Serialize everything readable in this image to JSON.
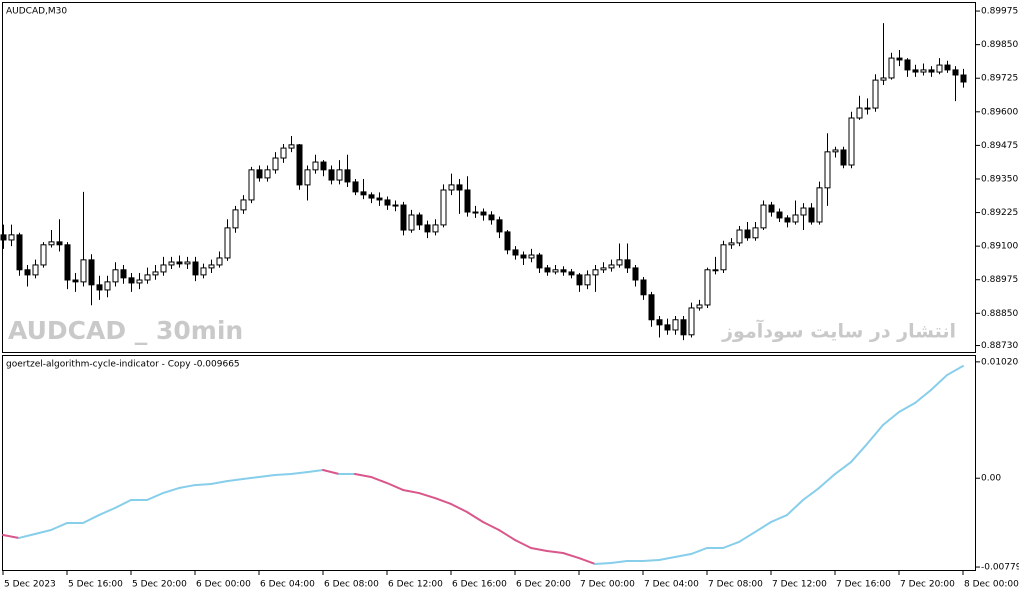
{
  "chart_data": [
    {
      "type": "candlestick",
      "title": "AUDCAD,M30",
      "watermark": "AUDCAD _ 30min",
      "watermark_right": "انتشار در سایت سودآموز",
      "up_color": "#ffffff",
      "down_color": "#000000",
      "ylim": [
        0.88706,
        0.90005
      ],
      "yticks": [
        0.89975,
        {
          "value": 0.8985,
          "label": "0.89850"
        },
        0.89725,
        {
          "value": 0.896,
          "label": "0.89600"
        },
        0.89475,
        {
          "value": 0.8935,
          "label": "0.89350"
        },
        0.89225,
        {
          "value": 0.891,
          "label": "0.89100"
        },
        0.88975,
        {
          "value": 0.8885,
          "label": "0.88850"
        },
        {
          "value": 0.8873,
          "label": "0.88730"
        }
      ],
      "categories": [
        "5 Dec 2023",
        null,
        null,
        null,
        null,
        null,
        null,
        null,
        "5 Dec 16:00",
        null,
        null,
        null,
        null,
        null,
        null,
        null,
        "5 Dec 20:00",
        null,
        null,
        null,
        null,
        null,
        null,
        null,
        "6 Dec 00:00",
        null,
        null,
        null,
        null,
        null,
        null,
        null,
        "6 Dec 04:00",
        null,
        null,
        null,
        null,
        null,
        null,
        null,
        "6 Dec 08:00",
        null,
        null,
        null,
        null,
        null,
        null,
        null,
        "6 Dec 12:00",
        null,
        null,
        null,
        null,
        null,
        null,
        null,
        "6 Dec 16:00",
        null,
        null,
        null,
        null,
        null,
        null,
        null,
        "6 Dec 20:00",
        null,
        null,
        null,
        null,
        null,
        null,
        null,
        "7 Dec 00:00",
        null,
        null,
        null,
        null,
        null,
        null,
        null,
        "7 Dec 04:00",
        null,
        null,
        null,
        null,
        null,
        null,
        null,
        "7 Dec 08:00",
        null,
        null,
        null,
        null,
        null,
        null,
        null,
        "7 Dec 12:00",
        null,
        null,
        null,
        null,
        null,
        null,
        null,
        "7 Dec 16:00",
        null,
        null,
        null,
        null,
        null,
        null,
        null,
        "7 Dec 20:00",
        null,
        null,
        null,
        null,
        null,
        null,
        null,
        "8 Dec 00:00"
      ],
      "ohlc": [
        [
          0.89142,
          0.8918,
          0.8909,
          0.89123
        ],
        [
          0.89123,
          0.8918,
          0.891,
          0.89142
        ],
        [
          0.89142,
          0.8915,
          0.8899,
          0.89012
        ],
        [
          0.89012,
          0.8903,
          0.8895,
          0.88993
        ],
        [
          0.88993,
          0.8905,
          0.8898,
          0.8903
        ],
        [
          0.8903,
          0.89115,
          0.8902,
          0.89105
        ],
        [
          0.89105,
          0.8916,
          0.89095,
          0.89116
        ],
        [
          0.89116,
          0.892,
          0.8908,
          0.89105
        ],
        [
          0.89105,
          0.89115,
          0.8894,
          0.88974
        ],
        [
          0.88974,
          0.89,
          0.8893,
          0.88967
        ],
        [
          0.88967,
          0.89302,
          0.8895,
          0.89049
        ],
        [
          0.89049,
          0.8907,
          0.8888,
          0.88956
        ],
        [
          0.88956,
          0.8899,
          0.889,
          0.88937
        ],
        [
          0.88937,
          0.8899,
          0.8891,
          0.88967
        ],
        [
          0.88967,
          0.8904,
          0.8895,
          0.89012
        ],
        [
          0.89012,
          0.8903,
          0.8896,
          0.88982
        ],
        [
          0.88982,
          0.89,
          0.8893,
          0.88963
        ],
        [
          0.88963,
          0.89,
          0.8894,
          0.88974
        ],
        [
          0.88974,
          0.8902,
          0.8896,
          0.88993
        ],
        [
          0.88993,
          0.8903,
          0.88975,
          0.89004
        ],
        [
          0.89004,
          0.8906,
          0.8899,
          0.8903
        ],
        [
          0.8903,
          0.8906,
          0.89015,
          0.89041
        ],
        [
          0.89041,
          0.89065,
          0.8902,
          0.89034
        ],
        [
          0.89034,
          0.8906,
          0.89015,
          0.89041
        ],
        [
          0.89041,
          0.8906,
          0.8897,
          0.88993
        ],
        [
          0.88993,
          0.89035,
          0.8898,
          0.89019
        ],
        [
          0.89019,
          0.8905,
          0.89,
          0.8903
        ],
        [
          0.8903,
          0.8908,
          0.8902,
          0.89056
        ],
        [
          0.89056,
          0.892,
          0.89045,
          0.89168
        ],
        [
          0.89168,
          0.8925,
          0.8915,
          0.89235
        ],
        [
          0.89235,
          0.8929,
          0.8922,
          0.89272
        ],
        [
          0.89272,
          0.89395,
          0.8926,
          0.89384
        ],
        [
          0.89384,
          0.894,
          0.8934,
          0.89354
        ],
        [
          0.89354,
          0.894,
          0.8934,
          0.89384
        ],
        [
          0.89384,
          0.8945,
          0.8937,
          0.89428
        ],
        [
          0.89428,
          0.8948,
          0.8941,
          0.89465
        ],
        [
          0.89465,
          0.8951,
          0.8945,
          0.89477
        ],
        [
          0.89477,
          0.8948,
          0.8931,
          0.89328
        ],
        [
          0.89328,
          0.894,
          0.8927,
          0.89384
        ],
        [
          0.89384,
          0.8944,
          0.8937,
          0.89413
        ],
        [
          0.89413,
          0.8942,
          0.8936,
          0.89384
        ],
        [
          0.89384,
          0.894,
          0.8933,
          0.89346
        ],
        [
          0.89346,
          0.8942,
          0.8933,
          0.89384
        ],
        [
          0.89384,
          0.8944,
          0.8932,
          0.89339
        ],
        [
          0.89339,
          0.8935,
          0.8929,
          0.89302
        ],
        [
          0.89302,
          0.8935,
          0.89275,
          0.89291
        ],
        [
          0.89291,
          0.893,
          0.8926,
          0.89279
        ],
        [
          0.89279,
          0.893,
          0.8925,
          0.89272
        ],
        [
          0.89272,
          0.89285,
          0.89235,
          0.89253
        ],
        [
          0.89253,
          0.8927,
          0.8923,
          0.89253
        ],
        [
          0.89253,
          0.89265,
          0.8914,
          0.8916
        ],
        [
          0.8916,
          0.89235,
          0.8915,
          0.89216
        ],
        [
          0.89216,
          0.89225,
          0.8916,
          0.89179
        ],
        [
          0.89179,
          0.89195,
          0.8913,
          0.89153
        ],
        [
          0.89153,
          0.892,
          0.8914,
          0.89179
        ],
        [
          0.89179,
          0.8933,
          0.8917,
          0.89309
        ],
        [
          0.89309,
          0.8937,
          0.8929,
          0.89328
        ],
        [
          0.89328,
          0.8935,
          0.8922,
          0.89309
        ],
        [
          0.89309,
          0.8936,
          0.8921,
          0.89227
        ],
        [
          0.89227,
          0.8925,
          0.89205,
          0.89227
        ],
        [
          0.89227,
          0.8924,
          0.89195,
          0.89216
        ],
        [
          0.89216,
          0.8923,
          0.8918,
          0.89198
        ],
        [
          0.89198,
          0.8921,
          0.8913,
          0.89153
        ],
        [
          0.89153,
          0.8916,
          0.8907,
          0.89086
        ],
        [
          0.89086,
          0.891,
          0.8905,
          0.89067
        ],
        [
          0.89067,
          0.8908,
          0.8903,
          0.89056
        ],
        [
          0.89056,
          0.8909,
          0.8904,
          0.89067
        ],
        [
          0.89067,
          0.89075,
          0.89,
          0.89019
        ],
        [
          0.89019,
          0.8903,
          0.8899,
          0.89004
        ],
        [
          0.89004,
          0.8903,
          0.88995,
          0.89012
        ],
        [
          0.89012,
          0.89025,
          0.8899,
          0.89004
        ],
        [
          0.89004,
          0.89015,
          0.8898,
          0.88993
        ],
        [
          0.88993,
          0.89,
          0.8893,
          0.88956
        ],
        [
          0.88956,
          0.8901,
          0.8894,
          0.88993
        ],
        [
          0.88993,
          0.8903,
          0.8893,
          0.89012
        ],
        [
          0.89012,
          0.8904,
          0.89,
          0.89019
        ],
        [
          0.89019,
          0.8905,
          0.89005,
          0.8903
        ],
        [
          0.8903,
          0.8911,
          0.8902,
          0.89049
        ],
        [
          0.89049,
          0.8911,
          0.89,
          0.89019
        ],
        [
          0.89019,
          0.8903,
          0.8895,
          0.88974
        ],
        [
          0.88974,
          0.88985,
          0.889,
          0.88919
        ],
        [
          0.88919,
          0.8893,
          0.888,
          0.88826
        ],
        [
          0.88826,
          0.8884,
          0.8876,
          0.88807
        ],
        [
          0.88807,
          0.8883,
          0.8877,
          0.88788
        ],
        [
          0.88788,
          0.8884,
          0.8877,
          0.88826
        ],
        [
          0.88826,
          0.8884,
          0.8875,
          0.8877
        ],
        [
          0.8877,
          0.8889,
          0.8876,
          0.8887
        ],
        [
          0.8887,
          0.889,
          0.8886,
          0.88881
        ],
        [
          0.88881,
          0.8902,
          0.8887,
          0.89012
        ],
        [
          0.89012,
          0.8906,
          0.88995,
          0.89012
        ],
        [
          0.89012,
          0.8912,
          0.89,
          0.89105
        ],
        [
          0.89105,
          0.8913,
          0.8909,
          0.89112
        ],
        [
          0.89112,
          0.89175,
          0.891,
          0.8916
        ],
        [
          0.8916,
          0.8919,
          0.8912,
          0.89131
        ],
        [
          0.89131,
          0.8919,
          0.8912,
          0.89168
        ],
        [
          0.89168,
          0.8927,
          0.8916,
          0.89253
        ],
        [
          0.89253,
          0.89265,
          0.8921,
          0.89227
        ],
        [
          0.89227,
          0.8924,
          0.8919,
          0.89205
        ],
        [
          0.89205,
          0.89215,
          0.8917,
          0.8919
        ],
        [
          0.8919,
          0.8927,
          0.8918,
          0.89216
        ],
        [
          0.89216,
          0.8926,
          0.8916,
          0.89242
        ],
        [
          0.89242,
          0.8926,
          0.8918,
          0.8919
        ],
        [
          0.8919,
          0.8934,
          0.8918,
          0.89317
        ],
        [
          0.89317,
          0.8952,
          0.8925,
          0.89451
        ],
        [
          0.89451,
          0.8947,
          0.8943,
          0.89458
        ],
        [
          0.89458,
          0.8947,
          0.8939,
          0.89402
        ],
        [
          0.89402,
          0.896,
          0.8939,
          0.89577
        ],
        [
          0.89577,
          0.8966,
          0.8957,
          0.89614
        ],
        [
          0.89614,
          0.8965,
          0.8959,
          0.89614
        ],
        [
          0.89614,
          0.8974,
          0.896,
          0.89718
        ],
        [
          0.89718,
          0.8993,
          0.897,
          0.89726
        ],
        [
          0.89726,
          0.8982,
          0.8972,
          0.898
        ],
        [
          0.898,
          0.8983,
          0.8977,
          0.89793
        ],
        [
          0.89793,
          0.898,
          0.8973,
          0.89756
        ],
        [
          0.89756,
          0.89775,
          0.8973,
          0.89748
        ],
        [
          0.89748,
          0.8978,
          0.89735,
          0.89756
        ],
        [
          0.89756,
          0.8977,
          0.8973,
          0.89748
        ],
        [
          0.89748,
          0.898,
          0.8974,
          0.89774
        ],
        [
          0.89774,
          0.8979,
          0.89745,
          0.89756
        ],
        [
          0.89756,
          0.8977,
          0.8964,
          0.89737
        ],
        [
          0.89737,
          0.8976,
          0.8969,
          0.89711
        ]
      ]
    },
    {
      "type": "line",
      "title": "goertzel-algorithm-cycle-indicator - Copy -0.009665",
      "up_color": "#87ceeb",
      "down_color": "#d9578a",
      "ylim": [
        -0.00805,
        0.01081
      ],
      "yticks": [
        0.010208,
        {
          "value": 0,
          "label": "0.00"
        },
        -0.007791
      ],
      "values": [
        -0.00498,
        -0.00524,
        -0.00489,
        -0.00454,
        -0.00393,
        -0.00393,
        -0.00323,
        -0.00261,
        -0.00191,
        -0.00191,
        -0.0013,
        -0.00086,
        -0.0006,
        -0.00051,
        -0.00025,
        -7e-05,
        0.00011,
        0.00028,
        0.00037,
        0.00054,
        0.00072,
        0.00037,
        0.00037,
        0.00011,
        -0.00042,
        -0.00103,
        -0.0013,
        -0.00174,
        -0.00226,
        -0.00296,
        -0.00384,
        -0.00454,
        -0.00542,
        -0.00612,
        -0.00638,
        -0.00656,
        -0.007,
        -0.00752,
        -0.00744,
        -0.00726,
        -0.00726,
        -0.00717,
        -0.00691,
        -0.00665,
        -0.00612,
        -0.00612,
        -0.00559,
        -0.00472,
        -0.00384,
        -0.00323,
        -0.00191,
        -0.00086,
        0.00037,
        0.00142,
        0.003,
        0.00467,
        0.00581,
        0.0066,
        0.00774,
        0.00905,
        0.00984
      ]
    }
  ]
}
